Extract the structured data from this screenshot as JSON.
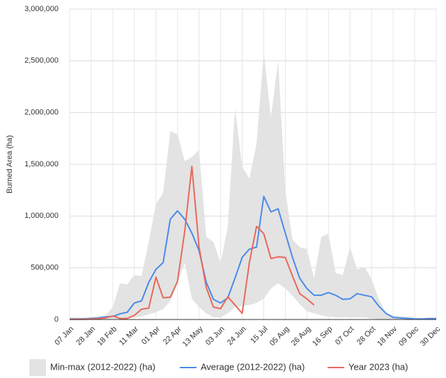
{
  "chart_data": {
    "type": "line",
    "y_label": "Burned Area (ha)",
    "categories": [
      "07 Jan",
      null,
      null,
      "28 Jan",
      null,
      null,
      "18 Feb",
      null,
      null,
      "11 Mar",
      null,
      null,
      "01 Apr",
      null,
      null,
      "22 Apr",
      null,
      null,
      "13 May",
      null,
      null,
      "03 Jun",
      null,
      null,
      "24 Jun",
      null,
      null,
      "15 Jul",
      null,
      null,
      "05 Aug",
      null,
      null,
      "26 Aug",
      null,
      null,
      "16 Sep",
      null,
      null,
      "07 Oct",
      null,
      null,
      "28 Oct",
      null,
      null,
      "18 Nov",
      null,
      null,
      "09 Dec",
      null,
      null,
      "30 Dec"
    ],
    "ylim": [
      0,
      3000000
    ],
    "yticks": [
      0,
      {
        "value": 500000,
        "label": "500,000"
      },
      {
        "value": 1000000,
        "label": "1,000,000"
      },
      {
        "value": 1500000,
        "label": "1,500,000"
      },
      {
        "value": 2000000,
        "label": "2,000,000"
      },
      {
        "value": 2500000,
        "label": "2,500,000"
      },
      {
        "value": 3000000,
        "label": "3,000,000"
      }
    ],
    "grid": true,
    "legend": "bottom",
    "series": [
      {
        "name": "Min-max (2012-2022) (ha)",
        "color": "#e3e3e3",
        "kind": "range",
        "values": [
          [
            0,
            20000
          ],
          [
            0,
            20000
          ],
          [
            0,
            20000
          ],
          [
            0,
            25000
          ],
          [
            0,
            30000
          ],
          [
            0,
            40000
          ],
          [
            5000,
            120000
          ],
          [
            5000,
            350000
          ],
          [
            10000,
            340000
          ],
          [
            20000,
            430000
          ],
          [
            30000,
            420000
          ],
          [
            50000,
            750000
          ],
          [
            70000,
            1120000
          ],
          [
            100000,
            1220000
          ],
          [
            180000,
            1820000
          ],
          [
            350000,
            1790000
          ],
          [
            550000,
            1530000
          ],
          [
            200000,
            1570000
          ],
          [
            120000,
            1640000
          ],
          [
            60000,
            800000
          ],
          [
            20000,
            750000
          ],
          [
            20000,
            550000
          ],
          [
            60000,
            900000
          ],
          [
            120000,
            2040000
          ],
          [
            130000,
            1480000
          ],
          [
            140000,
            1360000
          ],
          [
            160000,
            1700000
          ],
          [
            200000,
            2580000
          ],
          [
            300000,
            1950000
          ],
          [
            350000,
            2500000
          ],
          [
            300000,
            1250000
          ],
          [
            230000,
            770000
          ],
          [
            150000,
            700000
          ],
          [
            80000,
            680000
          ],
          [
            60000,
            400000
          ],
          [
            40000,
            800000
          ],
          [
            30000,
            830000
          ],
          [
            20000,
            450000
          ],
          [
            20000,
            430000
          ],
          [
            20000,
            700000
          ],
          [
            20000,
            480000
          ],
          [
            20000,
            510000
          ],
          [
            10000,
            390000
          ],
          [
            0,
            200000
          ],
          [
            0,
            60000
          ],
          [
            0,
            40000
          ],
          [
            0,
            30000
          ],
          [
            0,
            30000
          ],
          [
            0,
            20000
          ],
          [
            0,
            15000
          ],
          [
            0,
            20000
          ],
          [
            0,
            20000
          ]
        ]
      },
      {
        "name": "Average (2012-2022) (ha)",
        "color": "#4a8ae8",
        "values": [
          5000,
          5000,
          5000,
          10000,
          15000,
          25000,
          30000,
          55000,
          70000,
          160000,
          180000,
          360000,
          485000,
          550000,
          970000,
          1050000,
          970000,
          835000,
          665000,
          360000,
          195000,
          160000,
          210000,
          400000,
          600000,
          680000,
          700000,
          1190000,
          1040000,
          1070000,
          835000,
          600000,
          400000,
          300000,
          235000,
          235000,
          260000,
          235000,
          195000,
          200000,
          250000,
          235000,
          220000,
          130000,
          60000,
          20000,
          15000,
          10000,
          5000,
          5000,
          8000,
          8000
        ]
      },
      {
        "name": "Year 2023 (ha)",
        "color": "#e8685a",
        "values": [
          2000,
          2000,
          2000,
          5000,
          8000,
          15000,
          35000,
          10000,
          10000,
          40000,
          100000,
          110000,
          410000,
          210000,
          215000,
          370000,
          850000,
          1480000,
          700000,
          310000,
          120000,
          105000,
          220000,
          140000,
          60000,
          550000,
          900000,
          830000,
          590000,
          605000,
          600000,
          420000,
          250000,
          200000,
          140000,
          null,
          null,
          null,
          null,
          null,
          null,
          null,
          null,
          null,
          null,
          null,
          null,
          null,
          null,
          null,
          null,
          null
        ]
      }
    ]
  }
}
